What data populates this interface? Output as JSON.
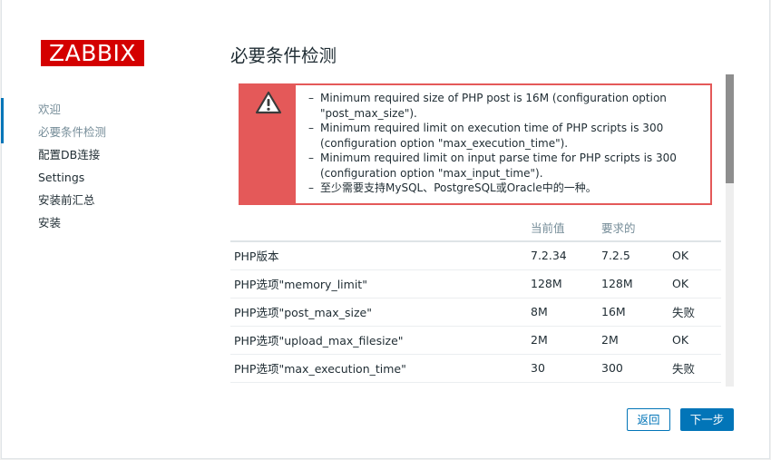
{
  "logo": "ZABBIX",
  "sidebar": {
    "items": [
      {
        "label": "欢迎"
      },
      {
        "label": "必要条件检测"
      },
      {
        "label": "配置DB连接"
      },
      {
        "label": "Settings"
      },
      {
        "label": "安装前汇总"
      },
      {
        "label": "安装"
      }
    ]
  },
  "page_title": "必要条件检测",
  "alert": {
    "icon": "warning-icon",
    "color": "#e45959",
    "messages": [
      "Minimum required size of PHP post is 16M (configuration option \"post_max_size\").",
      "Minimum required limit on execution time of PHP scripts is 300 (configuration option \"max_execution_time\").",
      "Minimum required limit on input parse time for PHP scripts is 300 (configuration option \"max_input_time\").",
      "至少需要支持MySQL、PostgreSQL或Oracle中的一种。"
    ]
  },
  "table": {
    "headers": {
      "name": "",
      "current": "当前值",
      "required": "要求的",
      "status": ""
    },
    "rows": [
      {
        "name": "PHP版本",
        "current": "7.2.34",
        "required": "7.2.5",
        "status": "OK"
      },
      {
        "name": "PHP选项\"memory_limit\"",
        "current": "128M",
        "required": "128M",
        "status": "OK"
      },
      {
        "name": "PHP选项\"post_max_size\"",
        "current": "8M",
        "required": "16M",
        "status": "失败"
      },
      {
        "name": "PHP选项\"upload_max_filesize\"",
        "current": "2M",
        "required": "2M",
        "status": "OK"
      },
      {
        "name": "PHP选项\"max_execution_time\"",
        "current": "30",
        "required": "300",
        "status": "失败"
      }
    ]
  },
  "buttons": {
    "back": "返回",
    "next": "下一步"
  },
  "colors": {
    "accent": "#0275b8",
    "ok": "#429e47",
    "fail": "#e45959",
    "brand": "#d40000"
  }
}
